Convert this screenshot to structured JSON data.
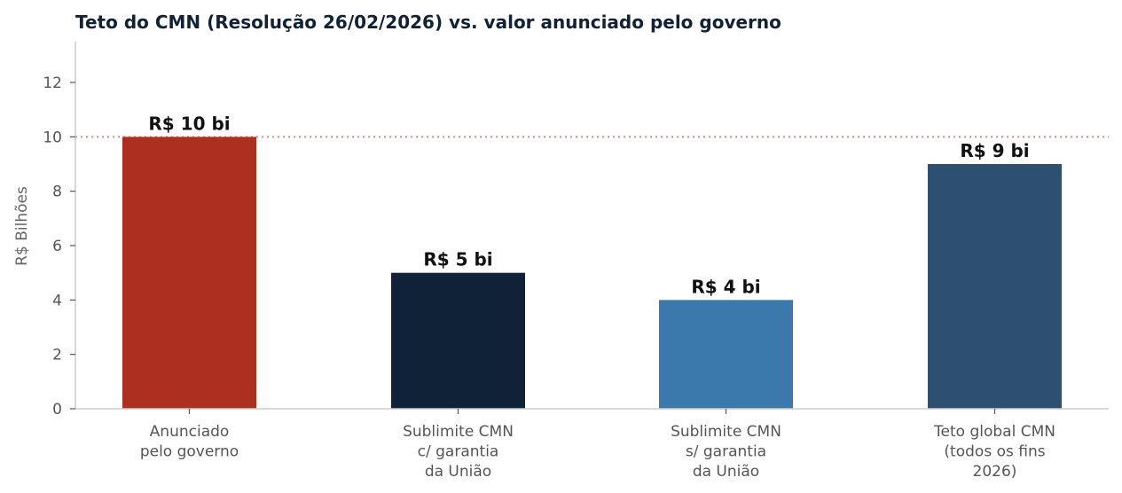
{
  "chart_data": {
    "type": "bar",
    "title": "Teto do CMN (Resolução 26/02/2026) vs. valor anunciado pelo governo",
    "ylabel": "R$ Bilhões",
    "xlabel": "",
    "ylim": [
      0,
      13.5
    ],
    "yticks": [
      0,
      2,
      4,
      6,
      8,
      10,
      12
    ],
    "grid": false,
    "reference_line": {
      "y": 10,
      "color": "#e0887a",
      "style": "dotted"
    },
    "categories": [
      [
        "Anunciado",
        "pelo governo"
      ],
      [
        "Sublimite CMN",
        "c/ garantia",
        "da União"
      ],
      [
        "Sublimite CMN",
        "s/ garantia",
        "da União"
      ],
      [
        "Teto global CMN",
        "(todos os fins",
        "2026)"
      ]
    ],
    "values": [
      10,
      5,
      4,
      9
    ],
    "data_labels": [
      "R$ 10 bi",
      "R$ 5 bi",
      "R$ 4 bi",
      "R$ 9 bi"
    ],
    "colors": [
      "#ad2f1f",
      "#0f2237",
      "#3b79ad",
      "#2d5070"
    ]
  }
}
